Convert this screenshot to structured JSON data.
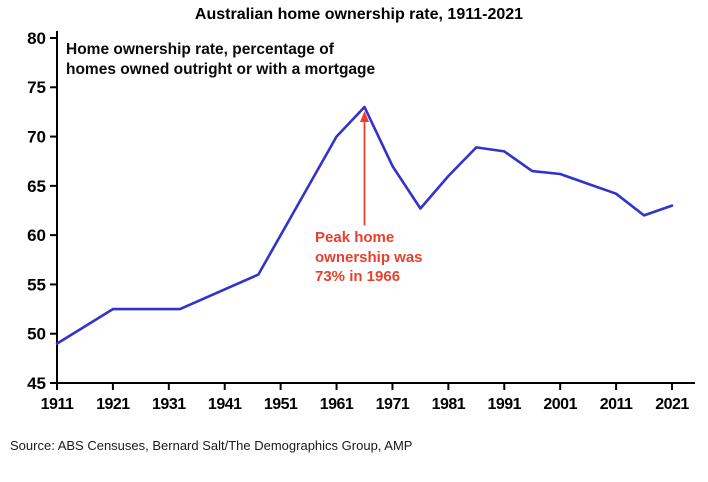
{
  "chart_data": {
    "type": "line",
    "title": "Australian home ownership rate, 1911-2021",
    "xlabel": "",
    "ylabel": "",
    "x": [
      1911,
      1921,
      1933,
      1947,
      1954,
      1961,
      1966,
      1971,
      1976,
      1981,
      1986,
      1991,
      1996,
      2001,
      2006,
      2011,
      2016,
      2021
    ],
    "values": [
      49,
      52.5,
      52.5,
      56,
      63,
      70,
      73,
      67,
      62.7,
      66,
      68.9,
      68.5,
      66.5,
      66.2,
      65.2,
      64.2,
      62,
      63
    ],
    "xlim": [
      1911,
      2021
    ],
    "ylim": [
      45,
      80
    ],
    "yticks": [
      45,
      50,
      55,
      60,
      65,
      70,
      75,
      80
    ],
    "xticks": [
      1911,
      1921,
      1931,
      1941,
      1951,
      1961,
      1971,
      1981,
      1991,
      2001,
      2011,
      2021
    ],
    "line_color": "#3333cc",
    "axis_color": "#000000",
    "grid": false,
    "legend": false
  },
  "annotations": {
    "note": "Home ownership rate, percentage of\nhomes owned outright or with a mortgage",
    "peak_label": "Peak home\nownership was\n73% in 1966",
    "peak_color": "#e8402e",
    "arrow": {
      "year": 1966,
      "value_from": 61,
      "value_to": 72.6
    }
  },
  "source": "Source: ABS Censuses, Bernard Salt/The Demographics Group, AMP"
}
